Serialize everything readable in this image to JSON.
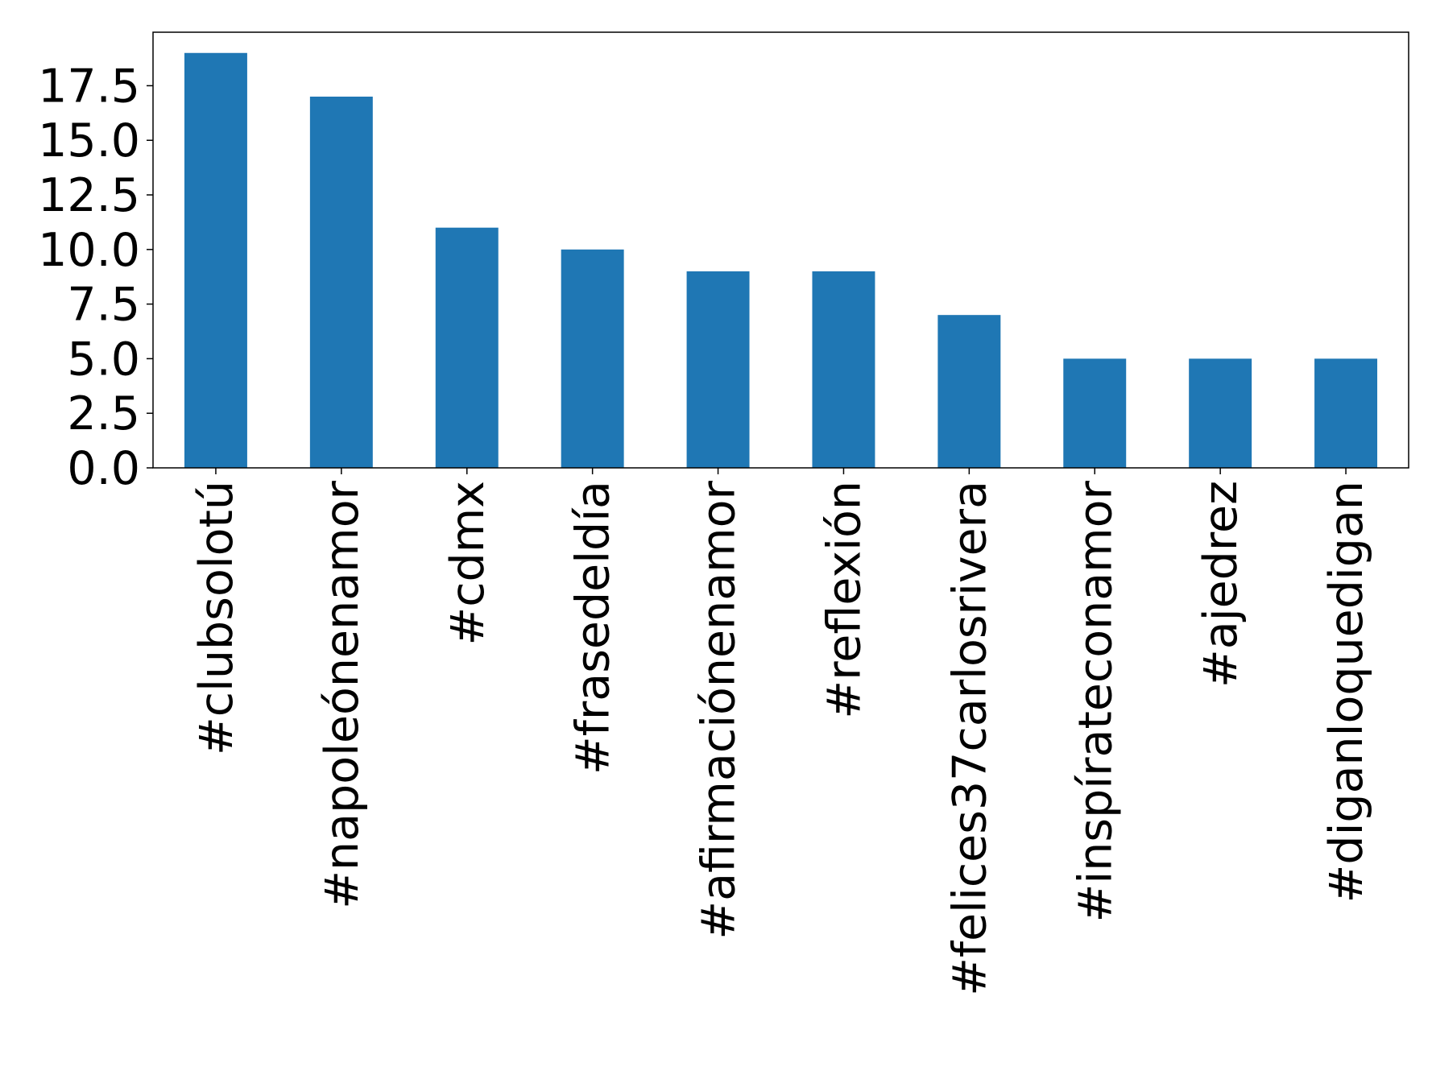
{
  "chart_data": {
    "type": "bar",
    "categories": [
      "#clubsolotú",
      "#napoleónenamor",
      "#cdmx",
      "#frasedeldía",
      "#afirmaciónenamor",
      "#reflexión",
      "#felices37carlosrivera",
      "#inspírateconamor",
      "#ajedrez",
      "#diganloquedigan"
    ],
    "values": [
      19,
      17,
      11,
      10,
      9,
      9,
      7,
      5,
      5,
      5
    ],
    "color": "#1f77b4",
    "ylim": [
      0,
      19.95
    ],
    "yticks": [
      {
        "value": 0,
        "label": "0.0"
      },
      2.5,
      {
        "value": 5,
        "label": "5.0"
      },
      7.5,
      {
        "value": 10,
        "label": "10.0"
      },
      12.5,
      {
        "value": 15,
        "label": "15.0"
      },
      17.5
    ],
    "grid": false
  }
}
